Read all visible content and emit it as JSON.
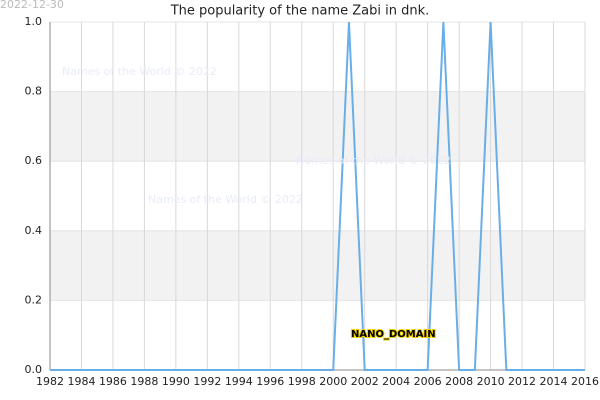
{
  "timestamp": "2022-12-30",
  "chart_data": {
    "type": "line",
    "title": "The popularity of the name Zabi in dnk.",
    "x": [
      1982,
      1983,
      1984,
      1985,
      1986,
      1987,
      1988,
      1989,
      1990,
      1991,
      1992,
      1993,
      1994,
      1995,
      1996,
      1997,
      1998,
      1999,
      2000,
      2001,
      2002,
      2003,
      2004,
      2005,
      2006,
      2007,
      2008,
      2009,
      2010,
      2011,
      2012,
      2013,
      2014,
      2015,
      2016
    ],
    "series": [
      {
        "name": "Zabi",
        "color": "#6aaee8",
        "values": [
          0,
          0,
          0,
          0,
          0,
          0,
          0,
          0,
          0,
          0,
          0,
          0,
          0,
          0,
          0,
          0,
          0,
          0,
          0,
          1,
          0,
          0,
          0,
          0,
          0,
          1,
          0,
          0,
          1,
          0,
          0,
          0,
          0,
          0,
          0
        ]
      }
    ],
    "xlim": [
      1982,
      2016
    ],
    "xticks": [
      1982,
      1984,
      1986,
      1988,
      1990,
      1992,
      1994,
      1996,
      1998,
      2000,
      2002,
      2004,
      2006,
      2008,
      2010,
      2012,
      2014,
      2016
    ],
    "ylim": [
      0,
      1
    ],
    "yticks": [
      {
        "value": 0,
        "label": "0.0"
      },
      {
        "value": 0.2,
        "label": "0.2"
      },
      {
        "value": 0.4,
        "label": "0.4"
      },
      {
        "value": 0.6,
        "label": "0.6"
      },
      {
        "value": 0.8,
        "label": "0.8"
      },
      {
        "value": 1,
        "label": "1.0"
      }
    ],
    "grid": true,
    "annotation": "NANO_DOMAIN",
    "watermarks": [
      "Names of the World © 2022",
      "Names of the World © 2022",
      "Names of the World © 2022"
    ]
  }
}
